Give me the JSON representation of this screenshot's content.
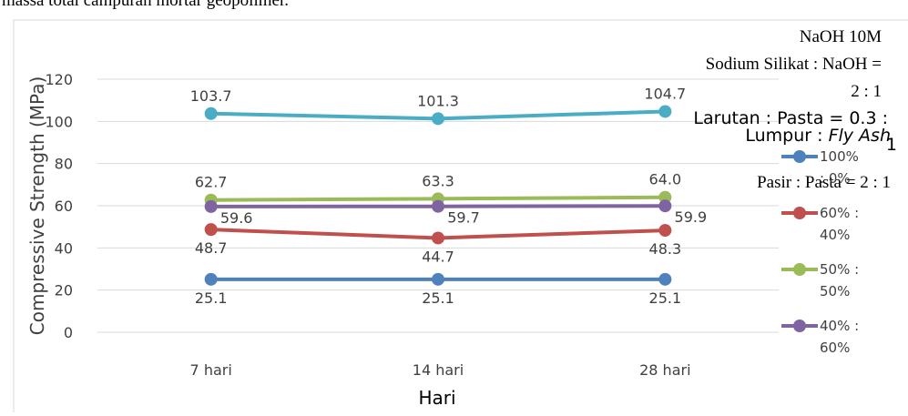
{
  "header_text": "massa total campuran mortar geopolimer.",
  "chart_data": {
    "type": "line",
    "y_label": "Compressive Strength (MPa)",
    "x_label": "Hari",
    "categories": [
      "7 hari",
      "14 hari",
      "28 hari"
    ],
    "ylim": [
      0,
      120
    ],
    "yticks": [
      0,
      20,
      40,
      60,
      80,
      100,
      120
    ],
    "legend_title": {
      "text": "Lumpur :",
      "italic": "Fly Ash"
    },
    "series": [
      {
        "color": "#4bacc6",
        "values": [
          103.7,
          101.3,
          104.7
        ]
      },
      {
        "name": "100% : 0%",
        "color": "#4f81bd",
        "values": [
          25.1,
          25.1,
          25.1
        ]
      },
      {
        "name": "60% : 40%",
        "color": "#c0504d",
        "values": [
          48.7,
          44.7,
          48.3
        ]
      },
      {
        "name": "50% : 50%",
        "color": "#9bbb59",
        "values": [
          62.7,
          63.3,
          64.0
        ],
        "value_labels": [
          "62.7",
          "63.3",
          "64.0"
        ]
      },
      {
        "name": "40% : 60%",
        "color": "#8064a2",
        "values": [
          59.6,
          59.7,
          59.9
        ]
      }
    ],
    "annotations": [
      "NaOH 10M",
      "Sodium Silikat : NaOH =",
      "2 : 1",
      "Larutan : Pasta =  0.3 :",
      "1",
      "Pasir : Pasta = 2 : 1"
    ]
  }
}
